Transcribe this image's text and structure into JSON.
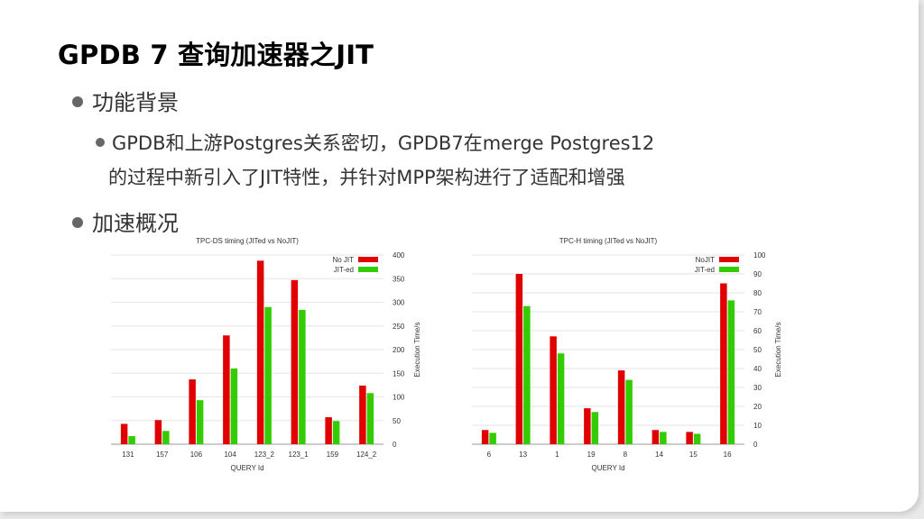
{
  "slide": {
    "title": "GPDB 7 查询加速器之JIT",
    "bullet1": "功能背景",
    "sub_bullet_line1": "GPDB和上游Postgres关系密切，GPDB7在merge Postgres12",
    "sub_bullet_line2": "的过程中新引入了JIT特性，并针对MPP架构进行了适配和增强",
    "bullet2": "加速概况"
  },
  "colors": {
    "series1": "#e00000",
    "series2": "#33cc00",
    "grid": "#e6e6e6",
    "axis": "#999999"
  },
  "chart_data": [
    {
      "type": "bar",
      "title": "TPC-DS timing (JITed vs NoJIT)",
      "xlabel": "QUERY Id",
      "ylabel": "Execution Time/s",
      "categories": [
        "131",
        "157",
        "106",
        "104",
        "123_2",
        "123_1",
        "159",
        "124_2"
      ],
      "series": [
        {
          "name": "No JIT",
          "values": [
            43,
            51,
            137,
            230,
            388,
            347,
            57,
            124
          ]
        },
        {
          "name": "JIT-ed",
          "values": [
            17,
            28,
            93,
            160,
            290,
            284,
            49,
            108
          ]
        }
      ],
      "ylim": [
        0,
        400
      ],
      "yticks": [
        0,
        50,
        100,
        150,
        200,
        250,
        300,
        350,
        400
      ],
      "legend": "top-right",
      "grid": true
    },
    {
      "type": "bar",
      "title": "TPC-H timing (JITed vs NoJIT)",
      "xlabel": "QUERY Id",
      "ylabel": "Execution Time/s",
      "categories": [
        "6",
        "13",
        "1",
        "19",
        "8",
        "14",
        "15",
        "16"
      ],
      "series": [
        {
          "name": "NoJIT",
          "values": [
            7.5,
            90,
            57,
            19,
            39,
            7.5,
            6.5,
            85
          ]
        },
        {
          "name": "JIT-ed",
          "values": [
            6,
            73,
            48,
            17,
            34,
            6.5,
            5.5,
            76
          ]
        }
      ],
      "ylim": [
        0,
        100
      ],
      "yticks": [
        0,
        10,
        20,
        30,
        40,
        50,
        60,
        70,
        80,
        90,
        100
      ],
      "legend": "top-right",
      "grid": true
    }
  ]
}
